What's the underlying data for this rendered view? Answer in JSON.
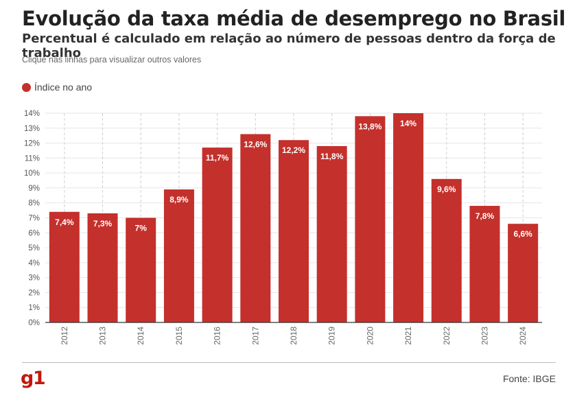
{
  "header": {
    "title": "Evolução da taxa média de desemprego no Brasil",
    "subtitle": "Percentual é calculado em relação ao número de pessoas dentro da força de trabalho",
    "hint": "Clique nas linhas para visualizar outros valores"
  },
  "legend": {
    "label": "Índice no ano",
    "color": "#c4302b"
  },
  "chart_data": {
    "type": "bar",
    "categories": [
      "2012",
      "2013",
      "2014",
      "2015",
      "2016",
      "2017",
      "2018",
      "2019",
      "2020",
      "2021",
      "2022",
      "2023",
      "2024"
    ],
    "series": [
      {
        "name": "Índice no ano",
        "values": [
          7.4,
          7.3,
          7.0,
          8.9,
          11.7,
          12.6,
          12.2,
          11.8,
          13.8,
          14.0,
          9.6,
          7.8,
          6.6
        ],
        "labels": [
          "7,4%",
          "7,3%",
          "7%",
          "8,9%",
          "11,7%",
          "12,6%",
          "12,2%",
          "11,8%",
          "13,8%",
          "14%",
          "9,6%",
          "7,8%",
          "6,6%"
        ]
      }
    ],
    "ylim": [
      0,
      14
    ],
    "yticks": [
      "0%",
      "1%",
      "2%",
      "3%",
      "4%",
      "5%",
      "6%",
      "7%",
      "8%",
      "9%",
      "10%",
      "11%",
      "12%",
      "13%",
      "14%"
    ],
    "grid": true,
    "bar_color": "#c4302b"
  },
  "footer": {
    "logo": "g1",
    "source": "Fonte: IBGE"
  }
}
